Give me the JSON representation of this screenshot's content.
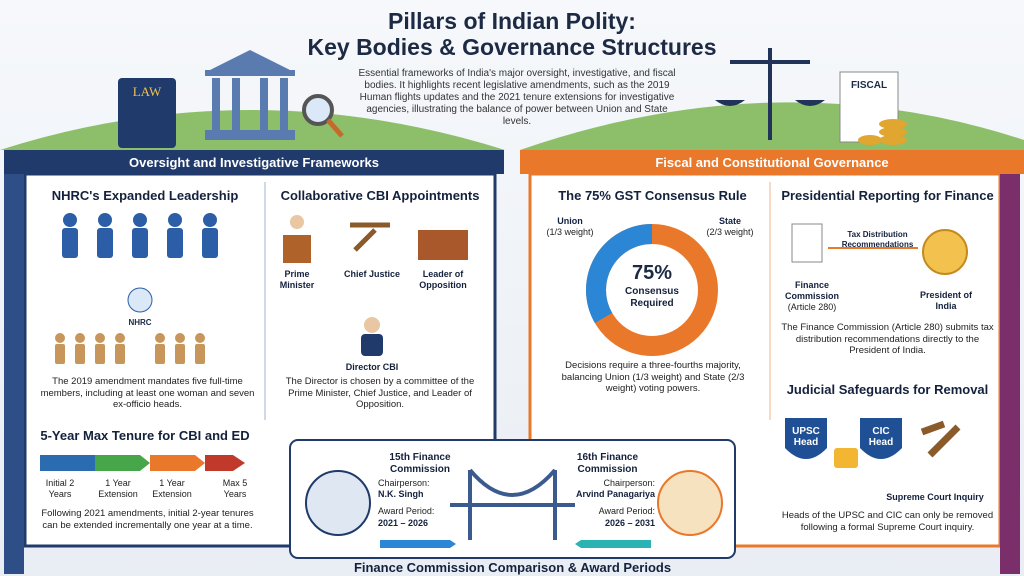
{
  "header": {
    "title_line1": "Pillars of Indian Polity:",
    "title_line2": "Key Bodies & Governance Structures",
    "intro": "Essential frameworks of India's major oversight, investigative, and fiscal bodies. It highlights recent legislative amendments, such as the 2019 Human flights updates and the 2021 tenure extensions for investigative agencies, illustrating the balance of power between Union and State levels.",
    "law_icon": "LAW",
    "fiscal_icon": "FISCAL"
  },
  "left_banner": "Oversight and Investigative Frameworks",
  "right_banner": "Fiscal and Constitutional Governance",
  "nhrc": {
    "title": "NHRC's Expanded Leadership",
    "emblem": "NHRC",
    "text": "The 2019 amendment mandates five full-time members, including at least one woman and seven ex-officio heads."
  },
  "cbi": {
    "title": "Collaborative CBI Appointments",
    "roles": [
      "Prime Minister",
      "Chief Justice",
      "Leader of Opposition"
    ],
    "director": "Director CBI",
    "text": "The Director is chosen by a committee of the Prime Minister, Chief Justice, and Leader of Opposition."
  },
  "tenure": {
    "title": "5-Year Max Tenure for CBI and ED",
    "steps": [
      "Initial 2 Years",
      "1 Year Extension",
      "1 Year Extension",
      "Max 5 Years"
    ],
    "text": "Following 2021 amendments, initial 2-year tenures can be extended incrementally one year at a time."
  },
  "gst": {
    "title": "The 75% GST Consensus Rule",
    "union": "Union",
    "union_weight": "(1/3 weight)",
    "state": "State",
    "state_weight": "(2/3 weight)",
    "center_pct": "75%",
    "center_text": "Consensus Required",
    "text": "Decisions require a three-fourths majority, balancing Union (1/3 weight) and State (2/3 weight) voting powers."
  },
  "presidential": {
    "title": "Presidential Reporting for Finance",
    "flow_label": "Tax Distribution Recommendations",
    "commission": "Finance Commission",
    "article": "(Article 280)",
    "president": "President of India",
    "text": "The Finance Commission (Article 280) submits tax distribution recommendations directly to the President of India."
  },
  "judicial": {
    "title": "Judicial Safeguards for Removal",
    "shields": [
      "UPSC Head",
      "CIC Head"
    ],
    "court": "Supreme Court Inquiry",
    "text": "Heads of the UPSC and CIC can only be removed following a formal Supreme Court inquiry."
  },
  "finance": {
    "title": "Finance Commission Comparison & Award Periods",
    "commissions": [
      {
        "name": "15th Finance Commission",
        "chair_label": "Chairperson:",
        "chair": "N.K. Singh",
        "period_label": "Award Period:",
        "period": "2021 – 2026"
      },
      {
        "name": "16th Finance Commission",
        "chair_label": "Chairperson:",
        "chair": "Arvind Panagariya",
        "period_label": "Award Period:",
        "period": "2026 – 2031"
      }
    ]
  }
}
